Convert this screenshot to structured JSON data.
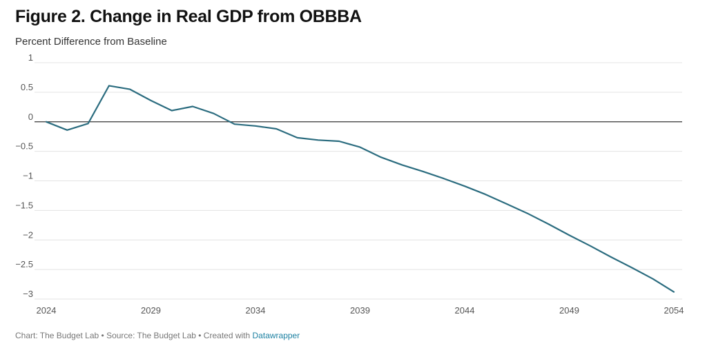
{
  "header": {
    "title": "Figure 2. Change in Real GDP from OBBBA",
    "subtitle": "Percent Difference from Baseline"
  },
  "footer": {
    "credits": "Chart: The Budget Lab • Source: The Budget Lab • Created with ",
    "link_label": "Datawrapper"
  },
  "colors": {
    "line": "#2b6c7f",
    "grid": "#e3e3e3",
    "zero_line": "#333333",
    "link": "#1d81a2"
  },
  "chart_data": {
    "type": "line",
    "title": "Figure 2. Change in Real GDP from OBBBA",
    "subtitle": "Percent Difference from Baseline",
    "xlabel": "",
    "ylabel": "",
    "xlim": [
      2024,
      2054
    ],
    "ylim": [
      -3,
      1
    ],
    "x_ticks": [
      2024,
      2029,
      2034,
      2039,
      2044,
      2049,
      2054
    ],
    "y_ticks": [
      1,
      0.5,
      0,
      -0.5,
      -1,
      -1.5,
      -2,
      -2.5,
      -3
    ],
    "y_tick_labels": [
      "1",
      "0.5",
      "0",
      "−0.5",
      "−1",
      "−1.5",
      "−2",
      "−2.5",
      "−3"
    ],
    "grid": true,
    "series": [
      {
        "x": [
          2024,
          2025,
          2026,
          2027,
          2028,
          2029,
          2030,
          2031,
          2032,
          2033,
          2034,
          2035,
          2036,
          2037,
          2038,
          2039,
          2040,
          2041,
          2042,
          2043,
          2044,
          2045,
          2046,
          2047,
          2048,
          2049,
          2050,
          2051,
          2052,
          2053,
          2054
        ],
        "values": [
          0,
          -0.14,
          -0.03,
          0.61,
          0.55,
          0.36,
          0.19,
          0.26,
          0.14,
          -0.04,
          -0.07,
          -0.12,
          -0.27,
          -0.31,
          -0.33,
          -0.43,
          -0.6,
          -0.73,
          -0.84,
          -0.96,
          -1.09,
          -1.23,
          -1.39,
          -1.55,
          -1.73,
          -1.92,
          -2.1,
          -2.29,
          -2.47,
          -2.66,
          -2.88
        ]
      }
    ]
  }
}
